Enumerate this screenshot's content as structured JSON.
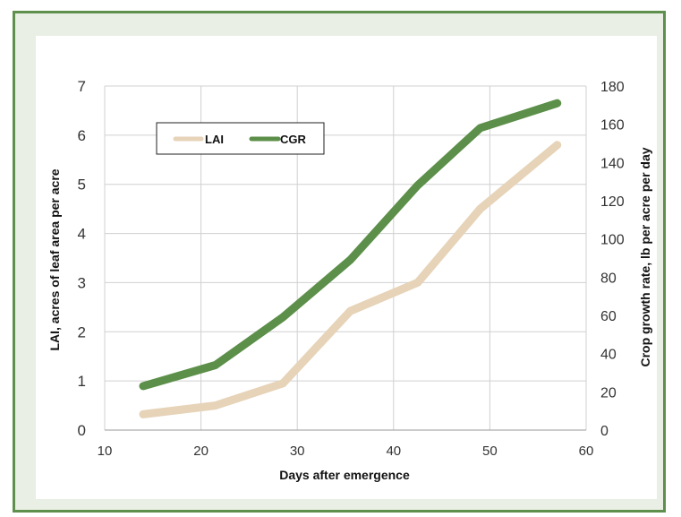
{
  "chart_data": {
    "type": "line",
    "title": "",
    "xlabel": "Days after emergence",
    "ylabel_left": "LAI, acres of leaf area per acre",
    "ylabel_right": "Crop growth rate, lb per acre per day",
    "xlim": [
      10,
      60
    ],
    "ylim_left": [
      0,
      7
    ],
    "ylim_right": [
      0,
      180
    ],
    "xticks": [
      "10",
      "20",
      "30",
      "40",
      "50",
      "60"
    ],
    "yticks_left": [
      "0",
      "1",
      "2",
      "3",
      "4",
      "5",
      "6",
      "7"
    ],
    "yticks_right": [
      "0",
      "20",
      "40",
      "60",
      "80",
      "100",
      "120",
      "140",
      "160",
      "180"
    ],
    "grid": true,
    "legend_position": "top-left",
    "series": [
      {
        "name": "LAI",
        "axis": "left",
        "color": "#e6d3b8",
        "x": [
          14,
          21.5,
          28.5,
          35.5,
          42.5,
          49,
          57
        ],
        "y": [
          0.32,
          0.5,
          0.95,
          2.42,
          3.0,
          4.5,
          5.8
        ]
      },
      {
        "name": "CGR",
        "axis": "right",
        "color": "#5c8f49",
        "x": [
          14,
          21.5,
          28.5,
          35.5,
          42.5,
          49,
          57
        ],
        "y": [
          23,
          34,
          59,
          89,
          128,
          158,
          171
        ]
      }
    ]
  }
}
